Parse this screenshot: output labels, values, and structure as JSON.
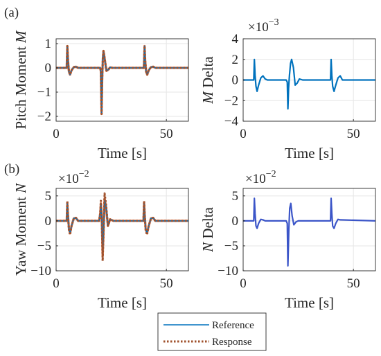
{
  "panel_labels": [
    "(a)",
    "(b)"
  ],
  "legend": {
    "entries": [
      {
        "label": "Reference",
        "color": "#0072BD",
        "style": "solid"
      },
      {
        "label": "Response",
        "color": "#A0522D",
        "style": "dotted"
      }
    ]
  },
  "colors": {
    "reference": "#0072BD",
    "response_red": "#D95319",
    "response_brown": "#A0522D",
    "delta_m": "#0072BD",
    "delta_n": "#3B55C8",
    "grid": "#e6e6e6",
    "axis": "#262626"
  },
  "chart_data": [
    {
      "id": "pitch",
      "type": "line",
      "ylabel": "Pitch Moment  M",
      "xlabel": "Time [s]",
      "xlim": [
        0,
        60
      ],
      "ylim": [
        -2.2,
        1.2
      ],
      "xticks": [
        0,
        50
      ],
      "yticks": [
        -2,
        -1,
        0,
        1
      ],
      "scale_exponent": "",
      "grid": true,
      "series": [
        {
          "name": "Reference",
          "style": "ref",
          "x": [
            0,
            4.8,
            5.1,
            5.4,
            5.8,
            6.3,
            7.0,
            8.0,
            9.0,
            10.0,
            20.0,
            20.3,
            20.6,
            20.9,
            21.2,
            21.5,
            22.0,
            22.8,
            23.6,
            24.5,
            25.5,
            39.8,
            40.1,
            40.4,
            40.8,
            41.3,
            42.0,
            43.0,
            44.0,
            45.0,
            60
          ],
          "y": [
            0,
            0,
            0.9,
            0.3,
            -0.15,
            -0.28,
            -0.1,
            0.03,
            0.05,
            0,
            0,
            -0.15,
            -1.9,
            -0.5,
            0.4,
            0.7,
            0.4,
            -0.12,
            -0.08,
            0.02,
            0,
            0,
            0.9,
            0.3,
            -0.15,
            -0.28,
            -0.1,
            0.03,
            0.05,
            0,
            0
          ]
        },
        {
          "name": "Response",
          "style": "resp",
          "x": [
            0,
            4.8,
            5.1,
            5.4,
            5.8,
            6.3,
            7.0,
            8.0,
            9.0,
            10.0,
            20.0,
            20.3,
            20.6,
            20.9,
            21.2,
            21.5,
            22.0,
            22.8,
            23.6,
            24.5,
            25.5,
            39.8,
            40.1,
            40.4,
            40.8,
            41.3,
            42.0,
            43.0,
            44.0,
            45.0,
            60
          ],
          "y": [
            0,
            0,
            0.9,
            0.3,
            -0.15,
            -0.28,
            -0.1,
            0.03,
            0.05,
            0,
            0,
            -0.15,
            -1.9,
            -0.5,
            0.4,
            0.7,
            0.4,
            -0.12,
            -0.08,
            0.02,
            0,
            0,
            0.9,
            0.3,
            -0.15,
            -0.28,
            -0.1,
            0.03,
            0.05,
            0,
            0
          ]
        }
      ]
    },
    {
      "id": "mdelta",
      "type": "line",
      "ylabel": "M Delta",
      "xlabel": "Time [s]",
      "xlim": [
        0,
        60
      ],
      "ylim": [
        -4,
        4
      ],
      "xticks": [
        0,
        50
      ],
      "yticks": [
        -4,
        -2,
        0,
        2,
        4
      ],
      "scale_exponent": "×10⁻³",
      "grid": true,
      "series": [
        {
          "name": "",
          "style": "delta_m",
          "x": [
            0,
            4.8,
            5.1,
            5.4,
            5.8,
            6.3,
            7.0,
            8.0,
            9.0,
            10.0,
            11.0,
            19.5,
            20.0,
            20.3,
            20.6,
            21.0,
            21.5,
            22.0,
            22.8,
            23.6,
            24.5,
            25.5,
            27.0,
            39.6,
            39.9,
            40.2,
            40.6,
            41.2,
            42.0,
            43.0,
            44.0,
            45.0,
            60
          ],
          "y": [
            0,
            0,
            2.0,
            0.5,
            -0.6,
            -1.1,
            -0.5,
            0.2,
            0.4,
            0.1,
            0,
            0,
            -0.2,
            -2.8,
            -0.8,
            0.5,
            1.6,
            2.0,
            1.2,
            -0.5,
            -0.3,
            0.1,
            0,
            0,
            2.0,
            0.5,
            -0.6,
            -1.1,
            -0.5,
            0.2,
            0.4,
            0,
            0
          ]
        }
      ]
    },
    {
      "id": "yaw",
      "type": "line",
      "ylabel": "Yaw Moment  N",
      "xlabel": "Time [s]",
      "xlim": [
        0,
        60
      ],
      "ylim": [
        -10,
        6.5
      ],
      "xticks": [
        0,
        50
      ],
      "yticks": [
        -10,
        -5,
        0,
        5
      ],
      "scale_exponent": "×10⁻²",
      "grid": true,
      "series": [
        {
          "name": "Reference",
          "style": "ref",
          "x": [
            0,
            4.8,
            5.1,
            5.4,
            5.8,
            6.3,
            7.0,
            8.0,
            9.0,
            10.0,
            19.5,
            20.0,
            20.3,
            20.7,
            21.1,
            21.5,
            22.0,
            22.6,
            23.5,
            24.5,
            26.0,
            39.6,
            39.9,
            40.2,
            40.6,
            41.2,
            42.0,
            43.0,
            44.0,
            45.0,
            60
          ],
          "y": [
            0,
            0,
            3.5,
            1.0,
            -1.5,
            -2.5,
            -1.0,
            0.5,
            0.6,
            0,
            0,
            1.5,
            3.5,
            0.5,
            -7.0,
            -2.5,
            4.5,
            3.0,
            -1.0,
            0.3,
            0,
            0,
            3.5,
            1.0,
            -1.5,
            -2.5,
            -1.0,
            0.5,
            0.6,
            0,
            0
          ]
        },
        {
          "name": "Response",
          "style": "resp",
          "x": [
            0,
            4.8,
            5.1,
            5.4,
            5.8,
            6.3,
            7.0,
            8.0,
            9.0,
            10.0,
            19.5,
            20.0,
            20.3,
            20.7,
            21.1,
            21.5,
            22.0,
            22.6,
            23.5,
            24.5,
            26.0,
            39.6,
            39.9,
            40.2,
            40.6,
            41.2,
            42.0,
            43.0,
            44.0,
            45.0,
            60
          ],
          "y": [
            0,
            0,
            4.0,
            1.0,
            -1.8,
            -2.8,
            -1.0,
            0.5,
            0.6,
            0,
            0,
            1.5,
            4.0,
            0.5,
            -8.0,
            -2.5,
            5.5,
            3.5,
            -1.0,
            0.3,
            0,
            0,
            4.0,
            1.0,
            -1.8,
            -2.8,
            -1.0,
            0.5,
            0.6,
            0,
            0
          ]
        }
      ]
    },
    {
      "id": "ndelta",
      "type": "line",
      "ylabel": "N Delta",
      "xlabel": "Time [s]",
      "xlim": [
        0,
        60
      ],
      "ylim": [
        -10,
        6.5
      ],
      "xticks": [
        0,
        50
      ],
      "yticks": [
        -10,
        -5,
        0,
        5
      ],
      "scale_exponent": "×10⁻²",
      "grid": true,
      "series": [
        {
          "name": "",
          "style": "delta_n",
          "x": [
            0,
            4.8,
            5.1,
            5.4,
            5.8,
            6.3,
            7.0,
            8.0,
            9.0,
            10.0,
            19.5,
            20.0,
            20.3,
            20.7,
            21.1,
            21.6,
            22.2,
            23.0,
            24.0,
            25.0,
            39.6,
            39.9,
            40.2,
            40.6,
            41.2,
            42.0,
            43.0,
            44.0,
            60
          ],
          "y": [
            0,
            0,
            4.5,
            1.5,
            -1.0,
            -1.5,
            -0.5,
            0.3,
            0.2,
            0,
            0,
            -0.5,
            -9.0,
            -2.0,
            2.5,
            3.5,
            1.0,
            -0.8,
            -0.2,
            0,
            0,
            4.5,
            1.5,
            -1.0,
            -1.5,
            -0.5,
            0.3,
            0.2,
            0
          ]
        }
      ]
    }
  ]
}
